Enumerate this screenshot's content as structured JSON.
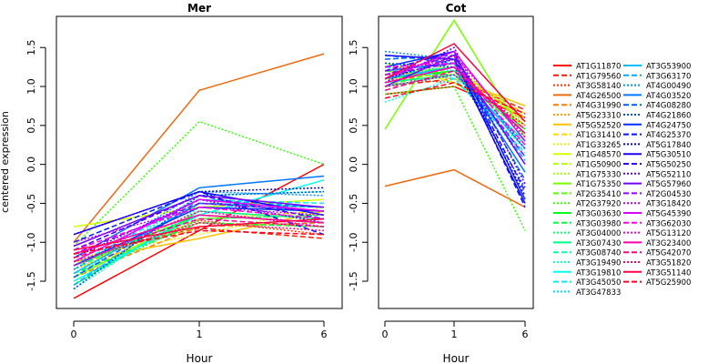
{
  "colors": {
    "AT1G11870": "#ff0000",
    "AT1G79560": "#ff1a00",
    "AT3G58140": "#ff3300",
    "AT4G26500": "#ee6a10",
    "AT4G31990": "#ff7a00",
    "AT5G23310": "#ff9a00",
    "AT5G52520": "#ffc000",
    "AT1G31410": "#ffda00",
    "AT1G33265": "#eef000",
    "AT1G48570": "#d8ff00",
    "AT1G50900": "#b8ff00",
    "AT1G75330": "#99ff00",
    "AT1G75350": "#77ff00",
    "AT2G35410": "#55ff00",
    "AT2G37920": "#33ff00",
    "AT3G03630": "#00ff1a",
    "AT3G03980": "#00ff40",
    "AT3G04000": "#00ff66",
    "AT3G07430": "#00ff88",
    "AT3G08740": "#00ffaa",
    "AT3G19490": "#00ffcc",
    "AT3G19810": "#00ffee",
    "AT3G45050": "#00eeff",
    "AT3G47833": "#00d8ff",
    "AT3G53900": "#00c0ff",
    "AT3G63170": "#00a8ff",
    "AT4G00490": "#0090ff",
    "AT4G03520": "#0077ff",
    "AT4G08280": "#0060ff",
    "AT4G21860": "#0048ff",
    "AT4G24750": "#0030ff",
    "AT4G25370": "#0018ff",
    "AT5G17840": "#0000ff",
    "AT5G30510": "#1a00ff",
    "AT5G50250": "#3300ff",
    "AT5G52110": "#5500ff",
    "AT5G57960": "#7700ff",
    "AT2G04530": "#9900ff",
    "AT3G18420": "#bb00ff",
    "AT5G45390": "#dd00ff",
    "AT3G62030": "#ff00ee",
    "AT5G13120": "#ff00cc",
    "AT3G23400": "#ff00aa",
    "AT5G42070": "#ff0088",
    "AT3G51820": "#ff0066",
    "AT3G51140": "#ff0044",
    "AT5G25900": "#ff0022"
  },
  "chart_data": [
    {
      "type": "line",
      "title": "Mer",
      "xlabel": "Hour",
      "ylabel": "centered expression",
      "x": [
        "0",
        "1",
        "6"
      ],
      "ylim": [
        -1.85,
        1.9
      ],
      "yticks": [
        "-1.5",
        "-1.0",
        "-0.5",
        "0.0",
        "0.5",
        "1.0",
        "1.5"
      ],
      "series": [
        {
          "name": "AT1G11870",
          "style": "solid",
          "values": [
            -1.72,
            -0.85,
            0.0
          ]
        },
        {
          "name": "AT1G79560",
          "style": "dashed",
          "values": [
            -1.15,
            -0.82,
            -0.95
          ]
        },
        {
          "name": "AT3G58140",
          "style": "dotted",
          "values": [
            -1.3,
            -0.72,
            -0.9
          ]
        },
        {
          "name": "AT4G26500",
          "style": "solid",
          "values": [
            -1.0,
            0.95,
            1.42
          ]
        },
        {
          "name": "AT4G31990",
          "style": "dashed",
          "values": [
            -1.45,
            -0.8,
            -0.75
          ]
        },
        {
          "name": "AT5G23310",
          "style": "dotted",
          "values": [
            -1.35,
            -0.75,
            -0.8
          ]
        },
        {
          "name": "AT5G52520",
          "style": "solid",
          "values": [
            -1.25,
            -0.95,
            -0.6
          ]
        },
        {
          "name": "AT1G31410",
          "style": "dashed",
          "values": [
            -1.4,
            -0.7,
            -0.6
          ]
        },
        {
          "name": "AT1G33265",
          "style": "dotted",
          "values": [
            -1.2,
            -0.9,
            -0.55
          ]
        },
        {
          "name": "AT1G48570",
          "style": "solid",
          "values": [
            -0.8,
            -0.55,
            -0.45
          ]
        },
        {
          "name": "AT1G50900",
          "style": "dashed",
          "values": [
            -1.35,
            -0.6,
            -0.7
          ]
        },
        {
          "name": "AT1G75330",
          "style": "dotted",
          "values": [
            -1.25,
            -0.8,
            -0.7
          ]
        },
        {
          "name": "AT1G75350",
          "style": "solid",
          "values": [
            -1.45,
            -0.65,
            -0.75
          ]
        },
        {
          "name": "AT2G35410",
          "style": "dashed",
          "values": [
            -1.2,
            -0.7,
            -0.65
          ]
        },
        {
          "name": "AT2G37920",
          "style": "dotted",
          "values": [
            -1.05,
            0.55,
            0.0
          ]
        },
        {
          "name": "AT3G03630",
          "style": "solid",
          "values": [
            -1.3,
            -0.65,
            -0.75
          ]
        },
        {
          "name": "AT3G03980",
          "style": "dashed",
          "values": [
            -1.4,
            -0.75,
            -0.8
          ]
        },
        {
          "name": "AT3G04000",
          "style": "dotted",
          "values": [
            -1.5,
            -0.7,
            -0.65
          ]
        },
        {
          "name": "AT3G07430",
          "style": "solid",
          "values": [
            -1.55,
            -0.6,
            -0.7
          ]
        },
        {
          "name": "AT3G08740",
          "style": "dashed",
          "values": [
            -1.35,
            -0.5,
            -0.55
          ]
        },
        {
          "name": "AT3G19490",
          "style": "dotted",
          "values": [
            -1.6,
            -0.55,
            -0.6
          ]
        },
        {
          "name": "AT3G19810",
          "style": "solid",
          "values": [
            -1.5,
            -0.65,
            -0.2
          ]
        },
        {
          "name": "AT3G45050",
          "style": "dashed",
          "values": [
            -1.3,
            -0.45,
            -0.5
          ]
        },
        {
          "name": "AT3G47833",
          "style": "dotted",
          "values": [
            -1.45,
            -0.4,
            -0.35
          ]
        },
        {
          "name": "AT3G53900",
          "style": "solid",
          "values": [
            -1.4,
            -0.5,
            -0.6
          ]
        },
        {
          "name": "AT3G63170",
          "style": "dashed",
          "values": [
            -1.55,
            -0.45,
            -0.55
          ]
        },
        {
          "name": "AT4G00490",
          "style": "dotted",
          "values": [
            -1.35,
            -0.35,
            -0.4
          ]
        },
        {
          "name": "AT4G03520",
          "style": "solid",
          "values": [
            -1.2,
            -0.3,
            -0.15
          ]
        },
        {
          "name": "AT4G08280",
          "style": "dashed",
          "values": [
            -1.45,
            -0.5,
            -0.55
          ]
        },
        {
          "name": "AT4G21860",
          "style": "dotted",
          "values": [
            -1.6,
            -0.4,
            -0.35
          ]
        },
        {
          "name": "AT4G24750",
          "style": "solid",
          "values": [
            -1.3,
            -0.55,
            -0.6
          ]
        },
        {
          "name": "AT4G25370",
          "style": "dashed",
          "values": [
            -1.0,
            -0.35,
            -0.9
          ]
        },
        {
          "name": "AT5G17840",
          "style": "dotted",
          "values": [
            -0.9,
            -0.35,
            -0.3
          ]
        },
        {
          "name": "AT5G30510",
          "style": "solid",
          "values": [
            -0.9,
            -0.35,
            -0.65
          ]
        },
        {
          "name": "AT5G50250",
          "style": "dashed",
          "values": [
            -1.1,
            -0.4,
            -0.7
          ]
        },
        {
          "name": "AT5G52110",
          "style": "dotted",
          "values": [
            -1.2,
            -0.45,
            -0.75
          ]
        },
        {
          "name": "AT5G57960",
          "style": "solid",
          "values": [
            -1.05,
            -0.4,
            -0.55
          ]
        },
        {
          "name": "AT2G04530",
          "style": "dashed",
          "values": [
            -1.15,
            -0.5,
            -0.6
          ]
        },
        {
          "name": "AT3G18420",
          "style": "dotted",
          "values": [
            -1.0,
            -0.55,
            -0.65
          ]
        },
        {
          "name": "AT5G45390",
          "style": "solid",
          "values": [
            -1.25,
            -0.45,
            -0.6
          ]
        },
        {
          "name": "AT3G62030",
          "style": "dashed",
          "values": [
            -1.1,
            -0.55,
            -0.7
          ]
        },
        {
          "name": "AT5G13120",
          "style": "dotted",
          "values": [
            -1.3,
            -0.6,
            -0.8
          ]
        },
        {
          "name": "AT3G23400",
          "style": "solid",
          "values": [
            -1.15,
            -0.65,
            -0.75
          ]
        },
        {
          "name": "AT5G42070",
          "style": "dashed",
          "values": [
            -1.2,
            -0.7,
            -0.8
          ]
        },
        {
          "name": "AT3G51820",
          "style": "dotted",
          "values": [
            -1.25,
            -0.75,
            -0.85
          ]
        },
        {
          "name": "AT3G51140",
          "style": "solid",
          "values": [
            -1.1,
            -0.8,
            -0.7
          ]
        },
        {
          "name": "AT5G25900",
          "style": "dashed",
          "values": [
            -1.15,
            -0.85,
            -0.9
          ]
        }
      ]
    },
    {
      "type": "line",
      "title": "Cot",
      "xlabel": "Hour",
      "x": [
        "0",
        "1",
        "6"
      ],
      "ylim": [
        -1.85,
        1.9
      ],
      "yticks": [
        "-1.5",
        "-1.0",
        "-0.5",
        "0.0",
        "0.5",
        "1.0",
        "1.5"
      ],
      "series": [
        {
          "name": "AT1G11870",
          "style": "solid",
          "values": [
            0.9,
            1.0,
            0.6
          ]
        },
        {
          "name": "AT1G79560",
          "style": "dashed",
          "values": [
            1.0,
            1.1,
            0.7
          ]
        },
        {
          "name": "AT3G58140",
          "style": "dotted",
          "values": [
            1.1,
            1.05,
            0.65
          ]
        },
        {
          "name": "AT4G26500",
          "style": "solid",
          "values": [
            -0.28,
            -0.07,
            -0.55
          ]
        },
        {
          "name": "AT4G31990",
          "style": "dashed",
          "values": [
            1.05,
            1.2,
            0.6
          ]
        },
        {
          "name": "AT5G23310",
          "style": "dotted",
          "values": [
            1.15,
            1.15,
            0.55
          ]
        },
        {
          "name": "AT5G52520",
          "style": "solid",
          "values": [
            1.2,
            1.1,
            0.75
          ]
        },
        {
          "name": "AT1G31410",
          "style": "dashed",
          "values": [
            1.1,
            1.2,
            0.65
          ]
        },
        {
          "name": "AT1G33265",
          "style": "dotted",
          "values": [
            1.25,
            1.15,
            0.6
          ]
        },
        {
          "name": "AT1G48570",
          "style": "solid",
          "values": [
            1.3,
            1.05,
            0.5
          ]
        },
        {
          "name": "AT1G50900",
          "style": "dashed",
          "values": [
            1.15,
            1.25,
            0.55
          ]
        },
        {
          "name": "AT1G75330",
          "style": "dotted",
          "values": [
            1.05,
            1.3,
            0.5
          ]
        },
        {
          "name": "AT1G75350",
          "style": "solid",
          "values": [
            0.45,
            1.85,
            0.35
          ]
        },
        {
          "name": "AT2G35410",
          "style": "dashed",
          "values": [
            1.0,
            1.25,
            0.4
          ]
        },
        {
          "name": "AT2G37920",
          "style": "dotted",
          "values": [
            0.9,
            1.0,
            -0.85
          ]
        },
        {
          "name": "AT3G03630",
          "style": "solid",
          "values": [
            1.1,
            1.2,
            0.45
          ]
        },
        {
          "name": "AT3G03980",
          "style": "dashed",
          "values": [
            1.2,
            1.15,
            0.4
          ]
        },
        {
          "name": "AT3G04000",
          "style": "dotted",
          "values": [
            1.15,
            1.25,
            0.35
          ]
        },
        {
          "name": "AT3G07430",
          "style": "solid",
          "values": [
            1.05,
            1.15,
            0.3
          ]
        },
        {
          "name": "AT3G08740",
          "style": "dashed",
          "values": [
            0.95,
            1.2,
            0.25
          ]
        },
        {
          "name": "AT3G19490",
          "style": "dotted",
          "values": [
            0.8,
            1.1,
            0.2
          ]
        },
        {
          "name": "AT3G19810",
          "style": "solid",
          "values": [
            1.0,
            1.15,
            0.3
          ]
        },
        {
          "name": "AT3G45050",
          "style": "dashed",
          "values": [
            1.25,
            1.1,
            0.15
          ]
        },
        {
          "name": "AT3G47833",
          "style": "dotted",
          "values": [
            1.3,
            1.2,
            0.1
          ]
        },
        {
          "name": "AT3G53900",
          "style": "solid",
          "values": [
            1.1,
            1.25,
            0.2
          ]
        },
        {
          "name": "AT3G63170",
          "style": "dashed",
          "values": [
            1.4,
            1.3,
            0.05
          ]
        },
        {
          "name": "AT4G00490",
          "style": "dotted",
          "values": [
            1.45,
            1.35,
            0.0
          ]
        },
        {
          "name": "AT4G03520",
          "style": "solid",
          "values": [
            1.2,
            1.3,
            -0.1
          ]
        },
        {
          "name": "AT4G08280",
          "style": "dashed",
          "values": [
            1.35,
            1.4,
            -0.2
          ]
        },
        {
          "name": "AT4G21860",
          "style": "dotted",
          "values": [
            1.3,
            1.25,
            -0.3
          ]
        },
        {
          "name": "AT4G24750",
          "style": "solid",
          "values": [
            1.25,
            1.45,
            -0.45
          ]
        },
        {
          "name": "AT4G25370",
          "style": "dashed",
          "values": [
            1.15,
            1.4,
            -0.55
          ]
        },
        {
          "name": "AT5G17840",
          "style": "dotted",
          "values": [
            1.1,
            1.35,
            -0.4
          ]
        },
        {
          "name": "AT5G30510",
          "style": "solid",
          "values": [
            1.4,
            1.35,
            -0.5
          ]
        },
        {
          "name": "AT5G50250",
          "style": "dashed",
          "values": [
            1.2,
            1.45,
            -0.35
          ]
        },
        {
          "name": "AT5G52110",
          "style": "dotted",
          "values": [
            1.05,
            1.5,
            -0.25
          ]
        },
        {
          "name": "AT5G57960",
          "style": "solid",
          "values": [
            1.0,
            1.4,
            0.0
          ]
        },
        {
          "name": "AT2G04530",
          "style": "dashed",
          "values": [
            1.15,
            1.3,
            0.1
          ]
        },
        {
          "name": "AT3G18420",
          "style": "dotted",
          "values": [
            1.2,
            1.35,
            0.2
          ]
        },
        {
          "name": "AT5G45390",
          "style": "solid",
          "values": [
            1.1,
            1.45,
            0.3
          ]
        },
        {
          "name": "AT3G62030",
          "style": "dashed",
          "values": [
            1.25,
            1.3,
            0.25
          ]
        },
        {
          "name": "AT5G13120",
          "style": "dotted",
          "values": [
            1.15,
            1.4,
            0.35
          ]
        },
        {
          "name": "AT3G23400",
          "style": "solid",
          "values": [
            1.05,
            1.25,
            0.4
          ]
        },
        {
          "name": "AT5G42070",
          "style": "dashed",
          "values": [
            0.95,
            1.2,
            0.45
          ]
        },
        {
          "name": "AT3G51820",
          "style": "dotted",
          "values": [
            1.0,
            1.15,
            0.5
          ]
        },
        {
          "name": "AT3G51140",
          "style": "solid",
          "values": [
            1.1,
            1.55,
            0.55
          ]
        },
        {
          "name": "AT5G25900",
          "style": "dashed",
          "values": [
            0.85,
            1.05,
            0.65
          ]
        }
      ]
    }
  ]
}
